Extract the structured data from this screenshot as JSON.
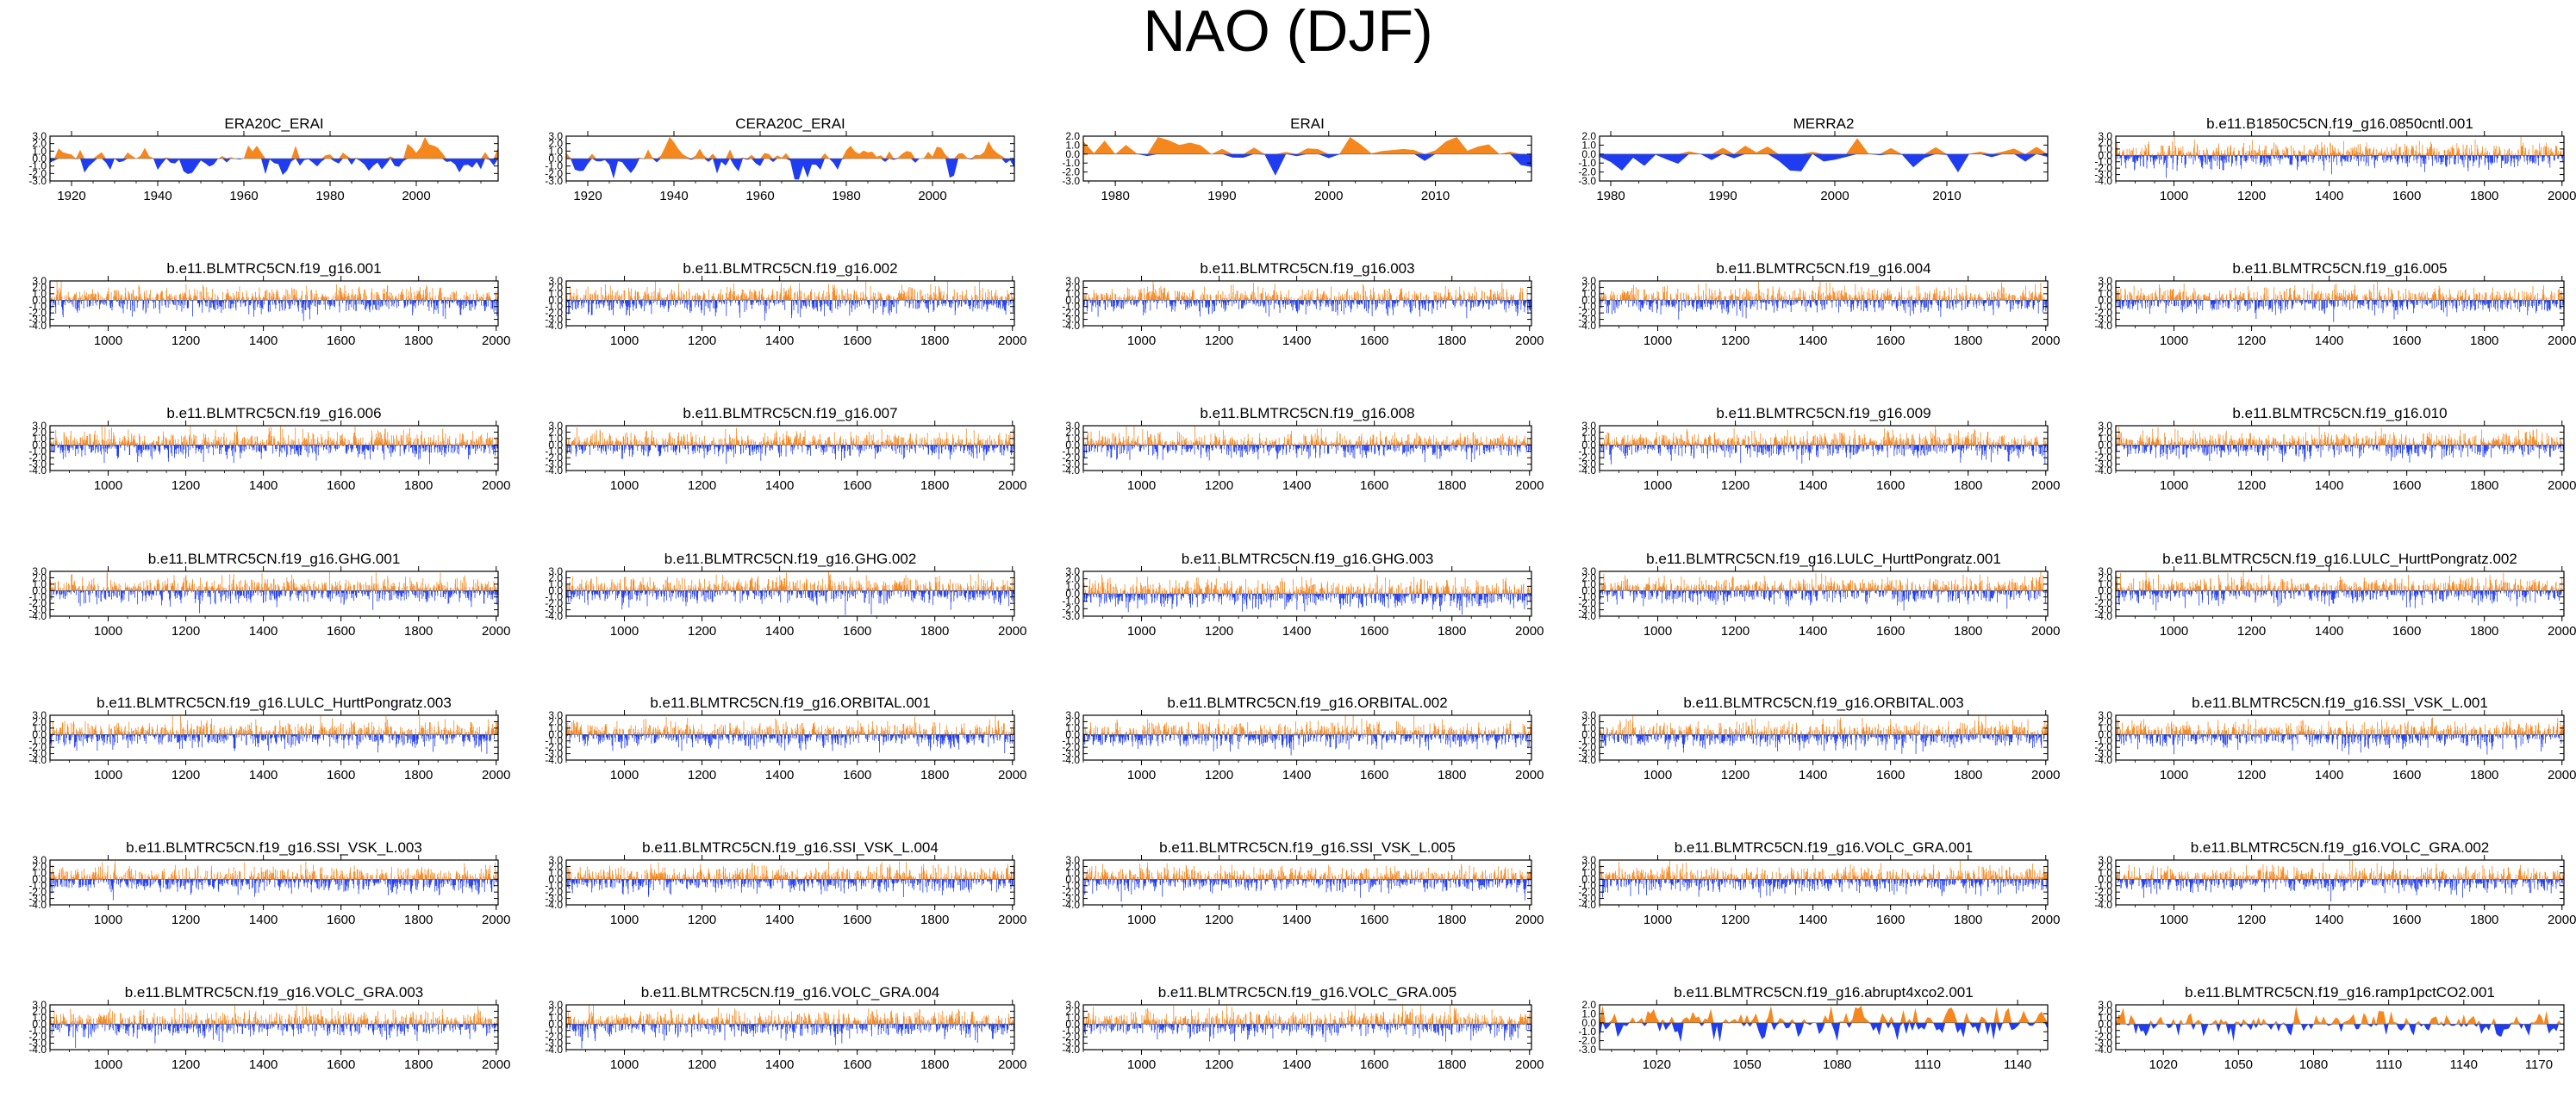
{
  "page_title": "NAO (DJF)",
  "colors": {
    "positive": "#f5871f",
    "negative": "#1f3cf0",
    "axis": "#000000"
  },
  "chart_data": [
    {
      "type": "area",
      "title": "ERA20C_ERAI",
      "x_range": [
        1915,
        2019
      ],
      "ylim": [
        -3,
        3
      ],
      "y_ticks": [
        "3.0",
        "2.0",
        "1.0",
        "0.0",
        "-1.0",
        "-2.0",
        "-3.0"
      ],
      "x_ticks": [
        "1920",
        "1940",
        "1960",
        "1980",
        "2000"
      ],
      "series": "smooth",
      "seed": 1
    },
    {
      "type": "area",
      "title": "CERA20C_ERAI",
      "x_range": [
        1915,
        2019
      ],
      "ylim": [
        -3,
        3
      ],
      "y_ticks": [
        "3.0",
        "2.0",
        "1.0",
        "0.0",
        "-1.0",
        "-2.0",
        "-3.0"
      ],
      "x_ticks": [
        "1920",
        "1940",
        "1960",
        "1980",
        "2000"
      ],
      "series": "smooth",
      "seed": 2
    },
    {
      "type": "area",
      "title": "ERAI",
      "x_range": [
        1977,
        2019
      ],
      "ylim": [
        -3,
        2
      ],
      "y_ticks": [
        "2.0",
        "1.0",
        "0.0",
        "-1.0",
        "-2.0",
        "-3.0"
      ],
      "x_ticks": [
        "1980",
        "1990",
        "2000",
        "2010"
      ],
      "series": "smooth",
      "seed": 3
    },
    {
      "type": "area",
      "title": "MERRA2",
      "x_range": [
        1979,
        2019
      ],
      "ylim": [
        -3,
        2
      ],
      "y_ticks": [
        "2.0",
        "1.0",
        "0.0",
        "-1.0",
        "-2.0",
        "-3.0"
      ],
      "x_ticks": [
        "1980",
        "1990",
        "2000",
        "2010"
      ],
      "series": "smooth",
      "seed": 4
    },
    {
      "type": "area",
      "title": "b.e11.B1850C5CN.f19_g16.0850cntl.001",
      "x_range": [
        850,
        2005
      ],
      "ylim": [
        -4,
        3
      ],
      "y_ticks": [
        "3.0",
        "2.0",
        "1.0",
        "0.0",
        "-1.0",
        "-2.0",
        "-3.0",
        "-4.0"
      ],
      "x_ticks": [
        "1000",
        "1200",
        "1400",
        "1600",
        "1800",
        "2000"
      ],
      "series": "dense",
      "seed": 5
    },
    {
      "type": "area",
      "title": "b.e11.BLMTRC5CN.f19_g16.001",
      "x_range": [
        850,
        2005
      ],
      "ylim": [
        -4,
        3
      ],
      "y_ticks": [
        "3.0",
        "2.0",
        "1.0",
        "0.0",
        "-1.0",
        "-2.0",
        "-3.0",
        "-4.0"
      ],
      "x_ticks": [
        "1000",
        "1200",
        "1400",
        "1600",
        "1800",
        "2000"
      ],
      "series": "dense",
      "seed": 6
    },
    {
      "type": "area",
      "title": "b.e11.BLMTRC5CN.f19_g16.002",
      "x_range": [
        850,
        2005
      ],
      "ylim": [
        -4,
        3
      ],
      "y_ticks": [
        "3.0",
        "2.0",
        "1.0",
        "0.0",
        "-1.0",
        "-2.0",
        "-3.0",
        "-4.0"
      ],
      "x_ticks": [
        "1000",
        "1200",
        "1400",
        "1600",
        "1800",
        "2000"
      ],
      "series": "dense",
      "seed": 7
    },
    {
      "type": "area",
      "title": "b.e11.BLMTRC5CN.f19_g16.003",
      "x_range": [
        850,
        2005
      ],
      "ylim": [
        -4,
        3
      ],
      "y_ticks": [
        "3.0",
        "2.0",
        "1.0",
        "0.0",
        "-1.0",
        "-2.0",
        "-3.0",
        "-4.0"
      ],
      "x_ticks": [
        "1000",
        "1200",
        "1400",
        "1600",
        "1800",
        "2000"
      ],
      "series": "dense",
      "seed": 8
    },
    {
      "type": "area",
      "title": "b.e11.BLMTRC5CN.f19_g16.004",
      "x_range": [
        850,
        2005
      ],
      "ylim": [
        -4,
        3
      ],
      "y_ticks": [
        "3.0",
        "2.0",
        "1.0",
        "0.0",
        "-1.0",
        "-2.0",
        "-3.0",
        "-4.0"
      ],
      "x_ticks": [
        "1000",
        "1200",
        "1400",
        "1600",
        "1800",
        "2000"
      ],
      "series": "dense",
      "seed": 9
    },
    {
      "type": "area",
      "title": "b.e11.BLMTRC5CN.f19_g16.005",
      "x_range": [
        850,
        2005
      ],
      "ylim": [
        -4,
        3
      ],
      "y_ticks": [
        "3.0",
        "2.0",
        "1.0",
        "0.0",
        "-1.0",
        "-2.0",
        "-3.0",
        "-4.0"
      ],
      "x_ticks": [
        "1000",
        "1200",
        "1400",
        "1600",
        "1800",
        "2000"
      ],
      "series": "dense",
      "seed": 10
    },
    {
      "type": "area",
      "title": "b.e11.BLMTRC5CN.f19_g16.006",
      "x_range": [
        850,
        2005
      ],
      "ylim": [
        -4,
        3
      ],
      "y_ticks": [
        "3.0",
        "2.0",
        "1.0",
        "0.0",
        "-1.0",
        "-2.0",
        "-3.0",
        "-4.0"
      ],
      "x_ticks": [
        "1000",
        "1200",
        "1400",
        "1600",
        "1800",
        "2000"
      ],
      "series": "dense",
      "seed": 11
    },
    {
      "type": "area",
      "title": "b.e11.BLMTRC5CN.f19_g16.007",
      "x_range": [
        850,
        2005
      ],
      "ylim": [
        -4,
        3
      ],
      "y_ticks": [
        "3.0",
        "2.0",
        "1.0",
        "0.0",
        "-1.0",
        "-2.0",
        "-3.0",
        "-4.0"
      ],
      "x_ticks": [
        "1000",
        "1200",
        "1400",
        "1600",
        "1800",
        "2000"
      ],
      "series": "dense",
      "seed": 12
    },
    {
      "type": "area",
      "title": "b.e11.BLMTRC5CN.f19_g16.008",
      "x_range": [
        850,
        2005
      ],
      "ylim": [
        -4,
        3
      ],
      "y_ticks": [
        "3.0",
        "2.0",
        "1.0",
        "0.0",
        "-1.0",
        "-2.0",
        "-3.0",
        "-4.0"
      ],
      "x_ticks": [
        "1000",
        "1200",
        "1400",
        "1600",
        "1800",
        "2000"
      ],
      "series": "dense",
      "seed": 13
    },
    {
      "type": "area",
      "title": "b.e11.BLMTRC5CN.f19_g16.009",
      "x_range": [
        850,
        2005
      ],
      "ylim": [
        -4,
        3
      ],
      "y_ticks": [
        "3.0",
        "2.0",
        "1.0",
        "0.0",
        "-1.0",
        "-2.0",
        "-3.0",
        "-4.0"
      ],
      "x_ticks": [
        "1000",
        "1200",
        "1400",
        "1600",
        "1800",
        "2000"
      ],
      "series": "dense",
      "seed": 14
    },
    {
      "type": "area",
      "title": "b.e11.BLMTRC5CN.f19_g16.010",
      "x_range": [
        850,
        2005
      ],
      "ylim": [
        -4,
        3
      ],
      "y_ticks": [
        "3.0",
        "2.0",
        "1.0",
        "0.0",
        "-1.0",
        "-2.0",
        "-3.0",
        "-4.0"
      ],
      "x_ticks": [
        "1000",
        "1200",
        "1400",
        "1600",
        "1800",
        "2000"
      ],
      "series": "dense",
      "seed": 15
    },
    {
      "type": "area",
      "title": "b.e11.BLMTRC5CN.f19_g16.GHG.001",
      "x_range": [
        850,
        2005
      ],
      "ylim": [
        -4,
        3
      ],
      "y_ticks": [
        "3.0",
        "2.0",
        "1.0",
        "0.0",
        "-1.0",
        "-2.0",
        "-3.0",
        "-4.0"
      ],
      "x_ticks": [
        "1000",
        "1200",
        "1400",
        "1600",
        "1800",
        "2000"
      ],
      "series": "dense",
      "seed": 16
    },
    {
      "type": "area",
      "title": "b.e11.BLMTRC5CN.f19_g16.GHG.002",
      "x_range": [
        850,
        2005
      ],
      "ylim": [
        -4,
        3
      ],
      "y_ticks": [
        "3.0",
        "2.0",
        "1.0",
        "0.0",
        "-1.0",
        "-2.0",
        "-3.0",
        "-4.0"
      ],
      "x_ticks": [
        "1000",
        "1200",
        "1400",
        "1600",
        "1800",
        "2000"
      ],
      "series": "dense",
      "seed": 17
    },
    {
      "type": "area",
      "title": "b.e11.BLMTRC5CN.f19_g16.GHG.003",
      "x_range": [
        850,
        2005
      ],
      "ylim": [
        -3,
        3
      ],
      "y_ticks": [
        "3.0",
        "2.0",
        "1.0",
        "0.0",
        "-1.0",
        "-2.0",
        "-3.0"
      ],
      "x_ticks": [
        "1000",
        "1200",
        "1400",
        "1600",
        "1800",
        "2000"
      ],
      "series": "dense",
      "seed": 18
    },
    {
      "type": "area",
      "title": "b.e11.BLMTRC5CN.f19_g16.LULC_HurttPongratz.001",
      "x_range": [
        850,
        2005
      ],
      "ylim": [
        -4,
        3
      ],
      "y_ticks": [
        "3.0",
        "2.0",
        "1.0",
        "0.0",
        "-1.0",
        "-2.0",
        "-3.0",
        "-4.0"
      ],
      "x_ticks": [
        "1000",
        "1200",
        "1400",
        "1600",
        "1800",
        "2000"
      ],
      "series": "dense",
      "seed": 19
    },
    {
      "type": "area",
      "title": "b.e11.BLMTRC5CN.f19_g16.LULC_HurttPongratz.002",
      "x_range": [
        850,
        2005
      ],
      "ylim": [
        -4,
        3
      ],
      "y_ticks": [
        "3.0",
        "2.0",
        "1.0",
        "0.0",
        "-1.0",
        "-2.0",
        "-3.0",
        "-4.0"
      ],
      "x_ticks": [
        "1000",
        "1200",
        "1400",
        "1600",
        "1800",
        "2000"
      ],
      "series": "dense",
      "seed": 20
    },
    {
      "type": "area",
      "title": "b.e11.BLMTRC5CN.f19_g16.LULC_HurttPongratz.003",
      "x_range": [
        850,
        2005
      ],
      "ylim": [
        -4,
        3
      ],
      "y_ticks": [
        "3.0",
        "2.0",
        "1.0",
        "0.0",
        "-1.0",
        "-2.0",
        "-3.0",
        "-4.0"
      ],
      "x_ticks": [
        "1000",
        "1200",
        "1400",
        "1600",
        "1800",
        "2000"
      ],
      "series": "dense",
      "seed": 21
    },
    {
      "type": "area",
      "title": "b.e11.BLMTRC5CN.f19_g16.ORBITAL.001",
      "x_range": [
        850,
        2005
      ],
      "ylim": [
        -4,
        3
      ],
      "y_ticks": [
        "3.0",
        "2.0",
        "1.0",
        "0.0",
        "-1.0",
        "-2.0",
        "-3.0",
        "-4.0"
      ],
      "x_ticks": [
        "1000",
        "1200",
        "1400",
        "1600",
        "1800",
        "2000"
      ],
      "series": "dense",
      "seed": 22
    },
    {
      "type": "area",
      "title": "b.e11.BLMTRC5CN.f19_g16.ORBITAL.002",
      "x_range": [
        850,
        2005
      ],
      "ylim": [
        -4,
        3
      ],
      "y_ticks": [
        "3.0",
        "2.0",
        "1.0",
        "0.0",
        "-1.0",
        "-2.0",
        "-3.0",
        "-4.0"
      ],
      "x_ticks": [
        "1000",
        "1200",
        "1400",
        "1600",
        "1800",
        "2000"
      ],
      "series": "dense",
      "seed": 23
    },
    {
      "type": "area",
      "title": "b.e11.BLMTRC5CN.f19_g16.ORBITAL.003",
      "x_range": [
        850,
        2005
      ],
      "ylim": [
        -4,
        3
      ],
      "y_ticks": [
        "3.0",
        "2.0",
        "1.0",
        "0.0",
        "-1.0",
        "-2.0",
        "-3.0",
        "-4.0"
      ],
      "x_ticks": [
        "1000",
        "1200",
        "1400",
        "1600",
        "1800",
        "2000"
      ],
      "series": "dense",
      "seed": 24
    },
    {
      "type": "area",
      "title": "b.e11.BLMTRC5CN.f19_g16.SSI_VSK_L.001",
      "x_range": [
        850,
        2005
      ],
      "ylim": [
        -4,
        3
      ],
      "y_ticks": [
        "3.0",
        "2.0",
        "1.0",
        "0.0",
        "-1.0",
        "-2.0",
        "-3.0",
        "-4.0"
      ],
      "x_ticks": [
        "1000",
        "1200",
        "1400",
        "1600",
        "1800",
        "2000"
      ],
      "series": "dense",
      "seed": 25
    },
    {
      "type": "area",
      "title": "b.e11.BLMTRC5CN.f19_g16.SSI_VSK_L.003",
      "x_range": [
        850,
        2005
      ],
      "ylim": [
        -4,
        3
      ],
      "y_ticks": [
        "3.0",
        "2.0",
        "1.0",
        "0.0",
        "-1.0",
        "-2.0",
        "-3.0",
        "-4.0"
      ],
      "x_ticks": [
        "1000",
        "1200",
        "1400",
        "1600",
        "1800",
        "2000"
      ],
      "series": "dense",
      "seed": 26
    },
    {
      "type": "area",
      "title": "b.e11.BLMTRC5CN.f19_g16.SSI_VSK_L.004",
      "x_range": [
        850,
        2005
      ],
      "ylim": [
        -4,
        3
      ],
      "y_ticks": [
        "3.0",
        "2.0",
        "1.0",
        "0.0",
        "-1.0",
        "-2.0",
        "-3.0",
        "-4.0"
      ],
      "x_ticks": [
        "1000",
        "1200",
        "1400",
        "1600",
        "1800",
        "2000"
      ],
      "series": "dense",
      "seed": 27
    },
    {
      "type": "area",
      "title": "b.e11.BLMTRC5CN.f19_g16.SSI_VSK_L.005",
      "x_range": [
        850,
        2005
      ],
      "ylim": [
        -4,
        3
      ],
      "y_ticks": [
        "3.0",
        "2.0",
        "1.0",
        "0.0",
        "-1.0",
        "-2.0",
        "-3.0",
        "-4.0"
      ],
      "x_ticks": [
        "1000",
        "1200",
        "1400",
        "1600",
        "1800",
        "2000"
      ],
      "series": "dense",
      "seed": 28
    },
    {
      "type": "area",
      "title": "b.e11.BLMTRC5CN.f19_g16.VOLC_GRA.001",
      "x_range": [
        850,
        2005
      ],
      "ylim": [
        -4,
        3
      ],
      "y_ticks": [
        "3.0",
        "2.0",
        "1.0",
        "0.0",
        "-1.0",
        "-2.0",
        "-3.0",
        "-4.0"
      ],
      "x_ticks": [
        "1000",
        "1200",
        "1400",
        "1600",
        "1800",
        "2000"
      ],
      "series": "dense",
      "seed": 29
    },
    {
      "type": "area",
      "title": "b.e11.BLMTRC5CN.f19_g16.VOLC_GRA.002",
      "x_range": [
        850,
        2005
      ],
      "ylim": [
        -4,
        3
      ],
      "y_ticks": [
        "3.0",
        "2.0",
        "1.0",
        "0.0",
        "-1.0",
        "-2.0",
        "-3.0",
        "-4.0"
      ],
      "x_ticks": [
        "1000",
        "1200",
        "1400",
        "1600",
        "1800",
        "2000"
      ],
      "series": "dense",
      "seed": 30
    },
    {
      "type": "area",
      "title": "b.e11.BLMTRC5CN.f19_g16.VOLC_GRA.003",
      "x_range": [
        850,
        2005
      ],
      "ylim": [
        -4,
        3
      ],
      "y_ticks": [
        "3.0",
        "2.0",
        "1.0",
        "0.0",
        "-1.0",
        "-2.0",
        "-3.0",
        "-4.0"
      ],
      "x_ticks": [
        "1000",
        "1200",
        "1400",
        "1600",
        "1800",
        "2000"
      ],
      "series": "dense",
      "seed": 31
    },
    {
      "type": "area",
      "title": "b.e11.BLMTRC5CN.f19_g16.VOLC_GRA.004",
      "x_range": [
        850,
        2005
      ],
      "ylim": [
        -4,
        3
      ],
      "y_ticks": [
        "3.0",
        "2.0",
        "1.0",
        "0.0",
        "-1.0",
        "-2.0",
        "-3.0",
        "-4.0"
      ],
      "x_ticks": [
        "1000",
        "1200",
        "1400",
        "1600",
        "1800",
        "2000"
      ],
      "series": "dense",
      "seed": 32
    },
    {
      "type": "area",
      "title": "b.e11.BLMTRC5CN.f19_g16.VOLC_GRA.005",
      "x_range": [
        850,
        2005
      ],
      "ylim": [
        -4,
        3
      ],
      "y_ticks": [
        "3.0",
        "2.0",
        "1.0",
        "0.0",
        "-1.0",
        "-2.0",
        "-3.0",
        "-4.0"
      ],
      "x_ticks": [
        "1000",
        "1200",
        "1400",
        "1600",
        "1800",
        "2000"
      ],
      "series": "dense",
      "seed": 33
    },
    {
      "type": "area",
      "title": "b.e11.BLMTRC5CN.f19_g16.abrupt4xco2.001",
      "x_range": [
        1001,
        1150
      ],
      "ylim": [
        -3,
        2
      ],
      "y_ticks": [
        "2.0",
        "1.0",
        "0.0",
        "-1.0",
        "-2.0",
        "-3.0"
      ],
      "x_ticks": [
        "1020",
        "1050",
        "1080",
        "1110",
        "1140"
      ],
      "series": "medium",
      "seed": 34
    },
    {
      "type": "area",
      "title": "b.e11.BLMTRC5CN.f19_g16.ramp1pctCO2.001",
      "x_range": [
        1001,
        1180
      ],
      "ylim": [
        -4,
        3
      ],
      "y_ticks": [
        "3.0",
        "2.0",
        "1.0",
        "0.0",
        "-1.0",
        "-2.0",
        "-3.0",
        "-4.0"
      ],
      "x_ticks": [
        "1020",
        "1050",
        "1080",
        "1110",
        "1140",
        "1170"
      ],
      "series": "medium",
      "seed": 35
    }
  ]
}
